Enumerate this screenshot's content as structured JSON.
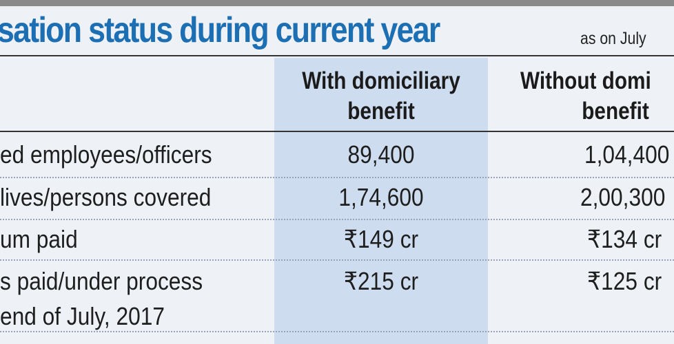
{
  "title": "sation status during current year",
  "subtitle": "as on July",
  "columns": [
    "With domiciliary benefit",
    "Without domi benefit"
  ],
  "column_lines": [
    [
      "With domiciliary",
      "benefit"
    ],
    [
      "Without domi",
      "benefit"
    ]
  ],
  "rows": [
    {
      "label": [
        "ed employees/officers"
      ],
      "with": "89,400",
      "without": "1,04,400"
    },
    {
      "label": [
        "lives/persons covered"
      ],
      "with": "1,74,600",
      "without": "2,00,300"
    },
    {
      "label": [
        "um paid"
      ],
      "with": "₹149 cr",
      "without": "₹134 cr"
    },
    {
      "label": [
        "s paid/under process",
        "end of July, 2017"
      ],
      "with": "₹215 cr",
      "without": "₹125 cr"
    }
  ],
  "colors": {
    "title": "#1d6fb3",
    "highlight": "#cddcef",
    "background": "#eef1f6"
  }
}
